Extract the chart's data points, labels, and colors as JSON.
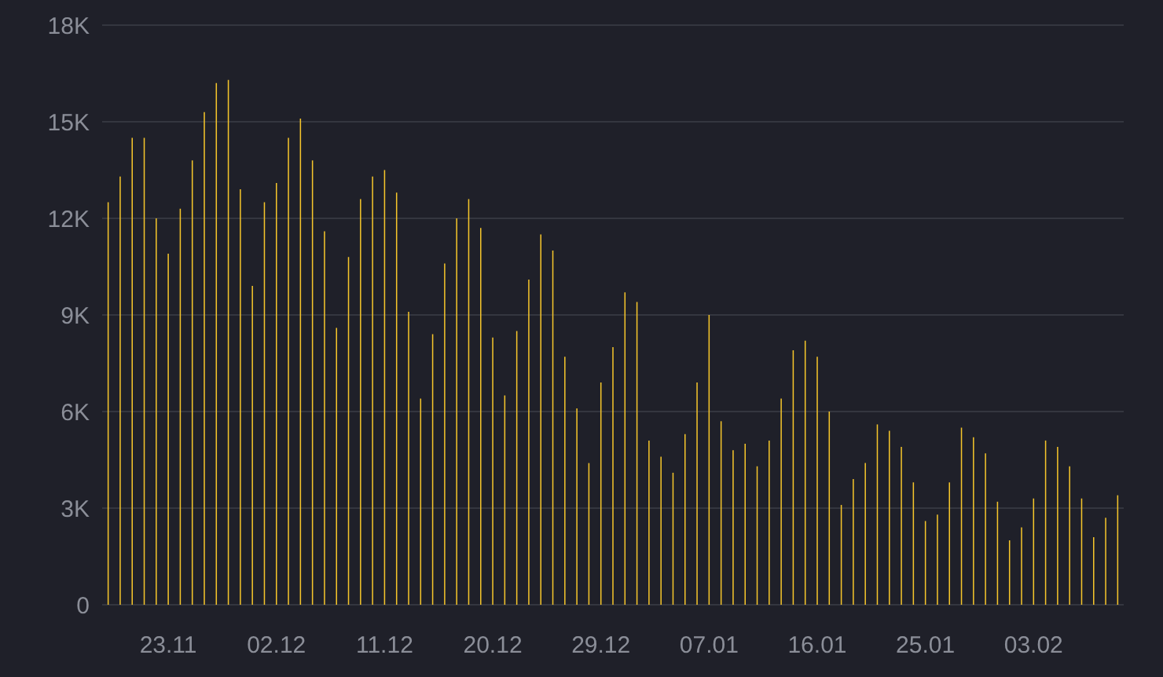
{
  "chart_data": {
    "type": "bar",
    "categories": [
      null,
      null,
      null,
      null,
      null,
      "23.11",
      null,
      null,
      null,
      null,
      null,
      null,
      null,
      null,
      "02.12",
      null,
      null,
      null,
      null,
      null,
      null,
      null,
      null,
      "11.12",
      null,
      null,
      null,
      null,
      null,
      null,
      null,
      null,
      "20.12",
      null,
      null,
      null,
      null,
      null,
      null,
      null,
      null,
      "29.12",
      null,
      null,
      null,
      null,
      null,
      null,
      null,
      null,
      "07.01",
      null,
      null,
      null,
      null,
      null,
      null,
      null,
      null,
      "16.01",
      null,
      null,
      null,
      null,
      null,
      null,
      null,
      null,
      "25.01",
      null,
      null,
      null,
      null,
      null,
      null,
      null,
      null,
      "03.02",
      null,
      null,
      null,
      null,
      null,
      null,
      null
    ],
    "values": [
      12500,
      13300,
      14500,
      14500,
      12000,
      10900,
      12300,
      13800,
      15300,
      16200,
      16300,
      12900,
      9900,
      12500,
      13100,
      14500,
      15100,
      13800,
      11600,
      8600,
      10800,
      12600,
      13300,
      13500,
      12800,
      9100,
      6400,
      8400,
      10600,
      12000,
      12600,
      11700,
      8300,
      6500,
      8500,
      10100,
      11500,
      11000,
      7700,
      6100,
      4400,
      6900,
      8000,
      9700,
      9400,
      5100,
      4600,
      4100,
      5300,
      6900,
      9000,
      5700,
      4800,
      5000,
      4300,
      5100,
      6400,
      7900,
      8200,
      7700,
      6000,
      3100,
      3900,
      4400,
      5600,
      5400,
      4900,
      3800,
      2600,
      2800,
      3800,
      5500,
      5200,
      4700,
      3200,
      2000,
      2400,
      3300,
      5100,
      4900,
      4300,
      3300,
      2100,
      2700,
      3400
    ],
    "color": "#f5c52b",
    "ylim": [
      0,
      18000
    ],
    "yticks": [
      0,
      {
        "value": 3000,
        "label": "3K"
      },
      {
        "value": 6000,
        "label": "6K"
      },
      {
        "value": 9000,
        "label": "9K"
      },
      {
        "value": 12000,
        "label": "12K"
      },
      {
        "value": 15000,
        "label": "15K"
      },
      {
        "value": 18000,
        "label": "18K"
      }
    ],
    "grid": "y"
  }
}
